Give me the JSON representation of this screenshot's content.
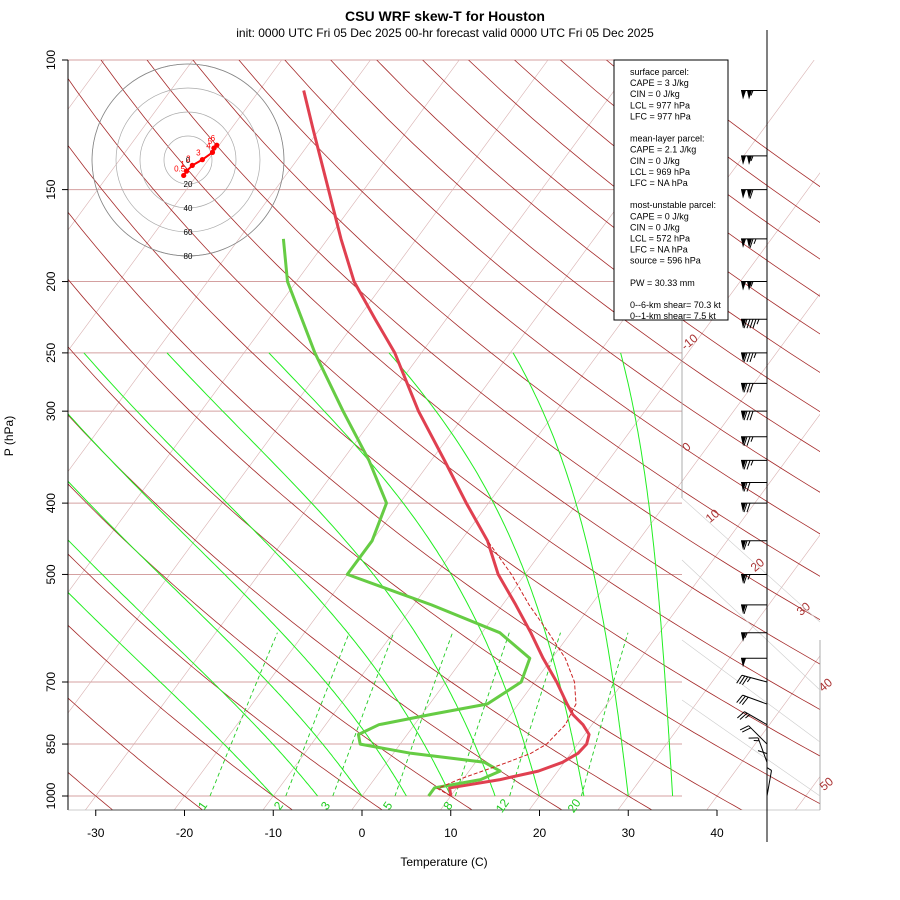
{
  "title": "CSU WRF skew-T for Houston",
  "subtitle": "init: 0000 UTC Fri 05 Dec 2025     00-hr forecast valid 0000 UTC Fri 05 Dec 2025",
  "colors": {
    "temperature": "#e04050",
    "dewpoint": "#66cc44",
    "isotherm": "#a52a2a",
    "isobar": "#d4a0a0",
    "dry_adiabat": "#a52a2a",
    "moist_adiabat": "#22ee22",
    "mixing_ratio": "#22cc22",
    "parcel": "#cc2222",
    "hodograph": "#ff0000"
  },
  "info_box": {
    "lines": [
      "surface parcel:",
      "CAPE = 3 J/kg",
      "CIN = 0 J/kg",
      "LCL = 977 hPa",
      "LFC = 977 hPa",
      "",
      "mean-layer parcel:",
      "CAPE = 2.1 J/kg",
      "CIN = 0 J/kg",
      "LCL = 969 hPa",
      "LFC = NA hPa",
      "",
      "most-unstable parcel:",
      "CAPE = 0 J/kg",
      "CIN = 0 J/kg",
      "LCL = 572 hPa",
      "LFC = NA hPa",
      "source = 596 hPa",
      "",
      "PW =  30.33 mm",
      "",
      "0--6-km shear= 70.3 kt",
      "0--1-km shear= 7.5 kt"
    ]
  },
  "hodograph": {
    "ring_labels": [
      "0",
      "20",
      "40",
      "60",
      "80"
    ],
    "point_labels": [
      "0.5",
      "1",
      "2",
      "3",
      "4",
      "5",
      "6"
    ]
  },
  "chart_data": {
    "type": "line",
    "title": "CSU WRF skew-T for Houston",
    "xlabel": "Temperature (C)",
    "ylabel": "P (hPa)",
    "x_ticks": [
      -30,
      -20,
      -10,
      0,
      10,
      20,
      30,
      40
    ],
    "y_ticks": [
      100,
      150,
      200,
      250,
      300,
      400,
      500,
      700,
      850,
      1000
    ],
    "isotherm_labels": [
      "-10",
      "0",
      "10",
      "20",
      "30",
      "40",
      "50"
    ],
    "mixing_ratio_labels": [
      "1",
      "2",
      "3",
      "5",
      "8",
      "12",
      "20"
    ],
    "series": [
      {
        "name": "temperature",
        "points": [
          [
            1000,
            10.0
          ],
          [
            975,
            9.2
          ],
          [
            950,
            14.2
          ],
          [
            925,
            17.8
          ],
          [
            900,
            19.8
          ],
          [
            875,
            20.8
          ],
          [
            850,
            21.0
          ],
          [
            825,
            20.5
          ],
          [
            800,
            19.0
          ],
          [
            775,
            17.0
          ],
          [
            750,
            15.5
          ],
          [
            700,
            12.5
          ],
          [
            650,
            9.0
          ],
          [
            600,
            5.5
          ],
          [
            550,
            1.5
          ],
          [
            500,
            -3.0
          ],
          [
            450,
            -7.0
          ],
          [
            400,
            -12.5
          ],
          [
            350,
            -18.5
          ],
          [
            300,
            -25.5
          ],
          [
            250,
            -33.0
          ],
          [
            225,
            -38.0
          ],
          [
            200,
            -43.5
          ],
          [
            175,
            -48.5
          ],
          [
            150,
            -54.0
          ],
          [
            125,
            -60.5
          ],
          [
            110,
            -65.0
          ]
        ]
      },
      {
        "name": "dewpoint",
        "points": [
          [
            1000,
            7.5
          ],
          [
            975,
            7.5
          ],
          [
            950,
            12.0
          ],
          [
            925,
            13.5
          ],
          [
            900,
            11.0
          ],
          [
            875,
            2.0
          ],
          [
            850,
            -4.5
          ],
          [
            825,
            -5.5
          ],
          [
            800,
            -4.0
          ],
          [
            775,
            1.0
          ],
          [
            750,
            6.5
          ],
          [
            700,
            8.5
          ],
          [
            650,
            7.5
          ],
          [
            600,
            2.0
          ],
          [
            550,
            -8.0
          ],
          [
            500,
            -20.0
          ],
          [
            450,
            -20.0
          ],
          [
            400,
            -21.5
          ],
          [
            350,
            -27.0
          ],
          [
            300,
            -34.0
          ],
          [
            250,
            -42.0
          ],
          [
            200,
            -51.0
          ],
          [
            175,
            -55.0
          ]
        ]
      },
      {
        "name": "parcel",
        "points": [
          [
            1000,
            10.0
          ],
          [
            977,
            7.9
          ],
          [
            950,
            9.5
          ],
          [
            900,
            13.6
          ],
          [
            875,
            15.5
          ],
          [
            850,
            16.5
          ],
          [
            800,
            17.0
          ],
          [
            750,
            16.5
          ],
          [
            700,
            14.5
          ],
          [
            650,
            11.5
          ],
          [
            600,
            7.5
          ],
          [
            550,
            3.0
          ],
          [
            500,
            -1.5
          ],
          [
            450,
            -7.0
          ]
        ]
      }
    ],
    "hodograph_winds": [
      {
        "label": "0.5",
        "u": -3,
        "v": -1
      },
      {
        "label": "1",
        "u": -1,
        "v": 2
      },
      {
        "label": "2",
        "u": 3,
        "v": 6
      },
      {
        "label": "3",
        "u": 10,
        "v": 10
      },
      {
        "label": "4",
        "u": 17,
        "v": 15
      },
      {
        "label": "5",
        "u": 18,
        "v": 18
      },
      {
        "label": "6",
        "u": 20,
        "v": 20
      }
    ],
    "wind_barbs": [
      {
        "p": 110,
        "speed": 105,
        "dir": 270
      },
      {
        "p": 135,
        "speed": 105,
        "dir": 270
      },
      {
        "p": 150,
        "speed": 110,
        "dir": 270
      },
      {
        "p": 175,
        "speed": 115,
        "dir": 270
      },
      {
        "p": 200,
        "speed": 105,
        "dir": 270
      },
      {
        "p": 225,
        "speed": 95,
        "dir": 270
      },
      {
        "p": 250,
        "speed": 85,
        "dir": 270
      },
      {
        "p": 275,
        "speed": 80,
        "dir": 270
      },
      {
        "p": 300,
        "speed": 80,
        "dir": 270
      },
      {
        "p": 325,
        "speed": 75,
        "dir": 270
      },
      {
        "p": 350,
        "speed": 75,
        "dir": 270
      },
      {
        "p": 375,
        "speed": 70,
        "dir": 270
      },
      {
        "p": 400,
        "speed": 70,
        "dir": 270
      },
      {
        "p": 450,
        "speed": 65,
        "dir": 270
      },
      {
        "p": 500,
        "speed": 65,
        "dir": 270
      },
      {
        "p": 550,
        "speed": 60,
        "dir": 270
      },
      {
        "p": 600,
        "speed": 55,
        "dir": 270
      },
      {
        "p": 650,
        "speed": 50,
        "dir": 270
      },
      {
        "p": 700,
        "speed": 35,
        "dir": 255
      },
      {
        "p": 750,
        "speed": 30,
        "dir": 250
      },
      {
        "p": 800,
        "speed": 25,
        "dir": 240
      },
      {
        "p": 850,
        "speed": 20,
        "dir": 225
      },
      {
        "p": 900,
        "speed": 15,
        "dir": 200
      },
      {
        "p": 950,
        "speed": 10,
        "dir": 180
      },
      {
        "p": 1000,
        "speed": 5,
        "dir": 170
      }
    ]
  }
}
